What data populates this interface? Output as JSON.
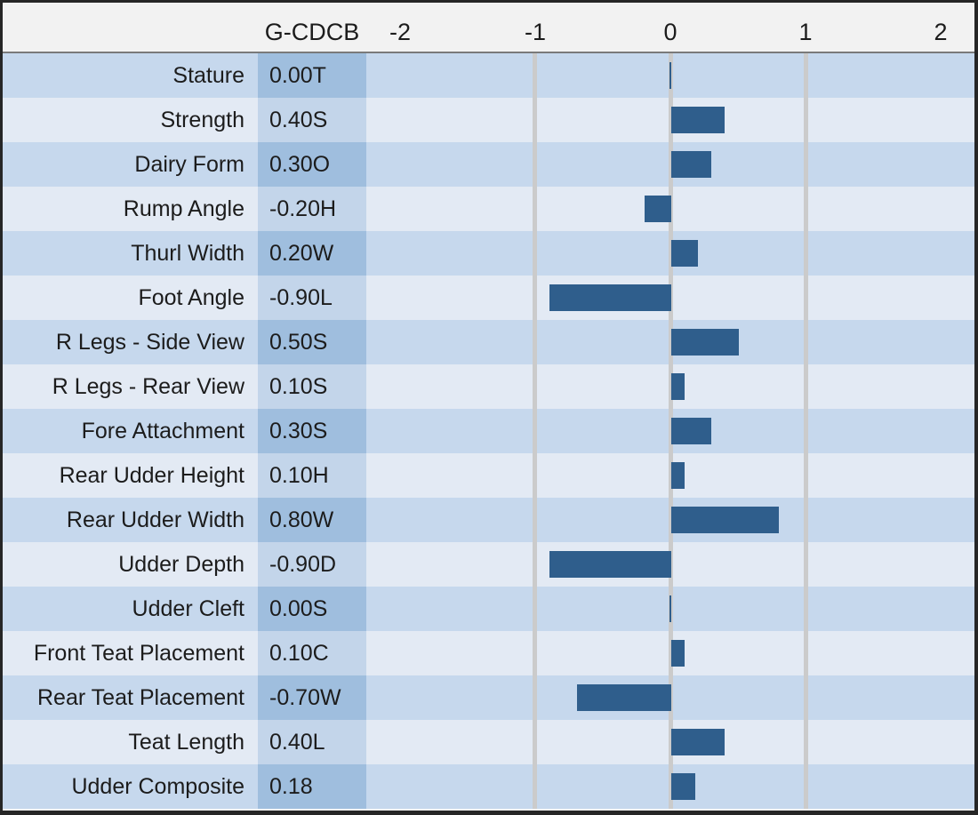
{
  "header": {
    "column_label": "G-CDCB",
    "axis_ticks": [
      "-2",
      "-1",
      "0",
      "1",
      "2"
    ]
  },
  "chart_data": {
    "type": "bar",
    "orientation": "horizontal",
    "series_name": "G-CDCB",
    "categories": [
      "Stature",
      "Strength",
      "Dairy Form",
      "Rump Angle",
      "Thurl Width",
      "Foot Angle",
      "R Legs - Side View",
      "R Legs - Rear View",
      "Fore Attachment",
      "Rear Udder Height",
      "Rear Udder Width",
      "Udder Depth",
      "Udder Cleft",
      "Front Teat Placement",
      "Rear Teat Placement",
      "Teat Length",
      "Udder Composite"
    ],
    "values": [
      0.0,
      0.4,
      0.3,
      -0.2,
      0.2,
      -0.9,
      0.5,
      0.1,
      0.3,
      0.1,
      0.8,
      -0.9,
      0.0,
      0.1,
      -0.7,
      0.4,
      0.18
    ],
    "value_labels": [
      "0.00T",
      "0.40S",
      "0.30O",
      "-0.20H",
      "0.20W",
      "-0.90L",
      "0.50S",
      "0.10S",
      "0.30S",
      "0.10H",
      "0.80W",
      "-0.90D",
      "0.00S",
      "0.10C",
      "-0.70W",
      "0.40L",
      "0.18"
    ],
    "xlabel": "",
    "ylabel": "",
    "xlim": [
      -2.25,
      2.25
    ],
    "tick_values": [
      -2,
      -1,
      0,
      1,
      2
    ],
    "gridlines_at": [
      -1,
      0,
      1
    ],
    "grid": true,
    "legend_position": "none",
    "bar_color": "#2F5E8C"
  },
  "colors": {
    "bar": "#2F5E8C",
    "row_dark": "#C6D8ED",
    "row_light": "#E3EAF4",
    "value_cell_dark": "#9FBEDE",
    "value_cell_light": "#C3D5EA",
    "gridline": "#CBCBCB",
    "header_background": "#F2F2F2",
    "frame_border": "#262626"
  }
}
